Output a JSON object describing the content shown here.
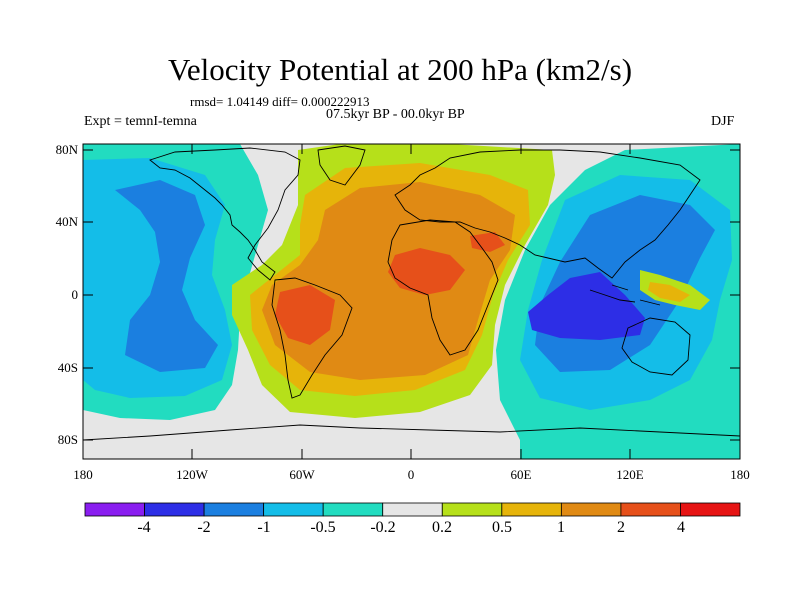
{
  "title": "Velocity Potential at 200 hPa (km2/s)",
  "stats": "rmsd= 1.04149 diff= 0.000222913",
  "period": "07.5kyr BP - 00.0kyr BP",
  "experiment": "Expt = temnI-temna",
  "season": "DJF",
  "lat_labels": [
    "80N",
    "40N",
    "0",
    "40S",
    "80S"
  ],
  "lon_labels": [
    "180",
    "120W",
    "60W",
    "0",
    "60E",
    "120E",
    "180"
  ],
  "colorbar": {
    "labels": [
      "-4",
      "-2",
      "-1",
      "-0.5",
      "-0.2",
      "0.2",
      "0.5",
      "1",
      "2",
      "4"
    ],
    "colors": [
      "#8a1ef0",
      "#2d2ee6",
      "#1b7fe0",
      "#14bde8",
      "#22dcc0",
      "#e6e6e6",
      "#b6e01a",
      "#e6b40a",
      "#e08a14",
      "#e6501a",
      "#e61414"
    ]
  }
}
